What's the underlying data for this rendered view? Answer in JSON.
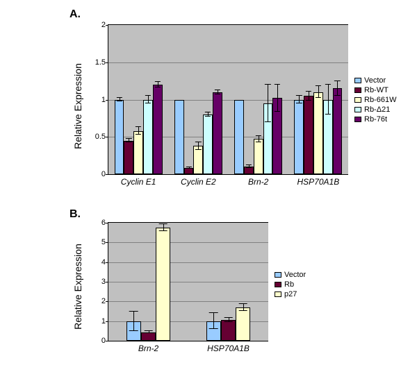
{
  "panelA": {
    "label": "A.",
    "ylabel": "Relative Expression",
    "type": "bar",
    "ylim": [
      0,
      2
    ],
    "ytick_step": 0.5,
    "background_color": "#c0c0c0",
    "grid_color": "#808080",
    "bar_border": "#000000",
    "categories": [
      "Cyclin E1",
      "Cyclin E2",
      "Brn-2",
      "HSP70A1B"
    ],
    "series": [
      {
        "name": "Vector",
        "color": "#99ccff"
      },
      {
        "name": "Rb-WT",
        "color": "#660033"
      },
      {
        "name": "Rb-661W",
        "color": "#ffffcc"
      },
      {
        "name": "Rb-Δ21",
        "color": "#ccffff"
      },
      {
        "name": "Rb-76t",
        "color": "#660066"
      }
    ],
    "values": [
      [
        1.0,
        1.0,
        1.0,
        1.0
      ],
      [
        0.45,
        0.08,
        0.1,
        1.05
      ],
      [
        0.58,
        0.38,
        0.47,
        1.1
      ],
      [
        1.0,
        0.8,
        0.95,
        1.0
      ],
      [
        1.2,
        1.1,
        1.02,
        1.15
      ]
    ],
    "errors": [
      [
        0.02,
        0.0,
        0.0,
        0.05
      ],
      [
        0.02,
        0.01,
        0.02,
        0.06
      ],
      [
        0.05,
        0.05,
        0.04,
        0.08
      ],
      [
        0.05,
        0.03,
        0.25,
        0.2
      ],
      [
        0.04,
        0.03,
        0.18,
        0.1
      ]
    ]
  },
  "panelB": {
    "label": "B.",
    "ylabel": "Relative Expression",
    "type": "bar",
    "ylim": [
      0,
      6
    ],
    "ytick_step": 1,
    "background_color": "#c0c0c0",
    "grid_color": "#808080",
    "bar_border": "#000000",
    "categories": [
      "Brn-2",
      "HSP70A1B"
    ],
    "series": [
      {
        "name": "Vector",
        "color": "#99ccff"
      },
      {
        "name": "Rb",
        "color": "#660033"
      },
      {
        "name": "p27",
        "color": "#ffffcc"
      }
    ],
    "values": [
      [
        1.0,
        1.0
      ],
      [
        0.43,
        1.05
      ],
      [
        5.75,
        1.7
      ]
    ],
    "errors": [
      [
        0.5,
        0.4
      ],
      [
        0.05,
        0.1
      ],
      [
        0.18,
        0.18
      ]
    ]
  }
}
